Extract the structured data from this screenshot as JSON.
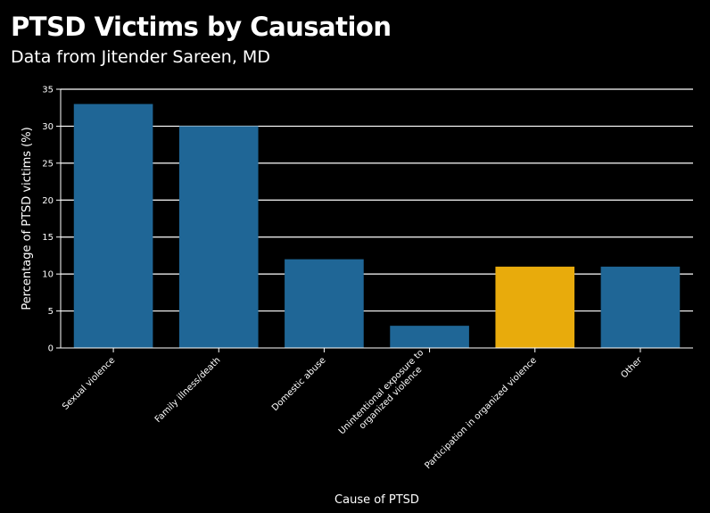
{
  "title": "PTSD Victims by Causation",
  "subtitle": "Data from Jitender Sareen, MD",
  "colors": {
    "default": "#1f6696",
    "highlight": "#e8ab0c",
    "grid": "#ffffff",
    "background": "#000000"
  },
  "chart_data": {
    "type": "bar",
    "title": "PTSD Victims by Causation",
    "subtitle": "Data from Jitender Sareen, MD",
    "xlabel": "Cause of PTSD",
    "ylabel": "Percentage of PTSD victims (%)",
    "categories": [
      [
        "Sexual violence"
      ],
      [
        "Family illness/death"
      ],
      [
        "Domestic abuse"
      ],
      [
        "Unintentional exposure to",
        "organized violence"
      ],
      [
        "Participation in organized violence"
      ],
      [
        "Other"
      ]
    ],
    "values": [
      33,
      30,
      12,
      3,
      11,
      11
    ],
    "highlight_index": 4,
    "ylim": [
      0,
      35
    ],
    "yticks": [
      0,
      5,
      10,
      15,
      20,
      25,
      30,
      35
    ],
    "grid": true
  }
}
